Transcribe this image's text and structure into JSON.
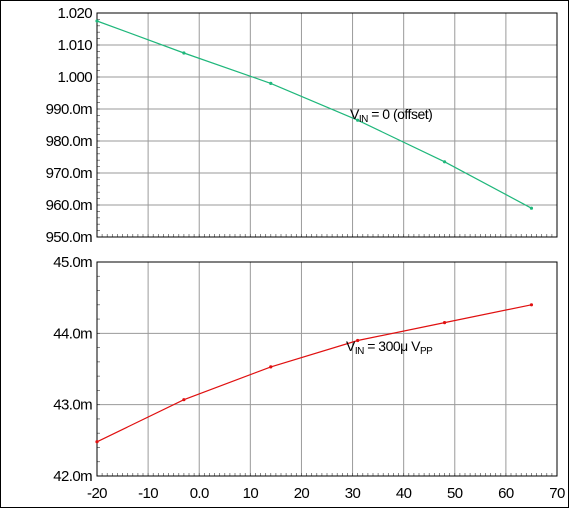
{
  "chart_data": [
    {
      "type": "line",
      "x": [
        -20,
        -3,
        14,
        31,
        48,
        65
      ],
      "xlim": [
        -20,
        70
      ],
      "xticks": [
        -20,
        -10,
        0,
        10,
        20,
        30,
        40,
        50,
        60,
        70
      ],
      "ylim": [
        0.95,
        1.02
      ],
      "yticks": [
        0.95,
        0.96,
        0.97,
        0.98,
        0.99,
        1.0,
        1.01,
        1.02
      ],
      "ytick_labels": [
        "950.0m",
        "960.0m",
        "970.0m",
        "980.0m",
        "990.0m",
        "1.000",
        "1.010",
        "1.020"
      ],
      "grid": true,
      "series": [
        {
          "values": [
            1.0175,
            1.0075,
            0.998,
            0.9865,
            0.9735,
            0.959
          ],
          "color": "#1fb77b"
        }
      ],
      "annotation": {
        "main": "V",
        "sub": "IN",
        "rest": " = 0 (offset)"
      }
    },
    {
      "type": "line",
      "x": [
        -20,
        -3,
        14,
        31,
        48,
        65
      ],
      "xlim": [
        -20,
        70
      ],
      "xticks": [
        -20,
        -10,
        0,
        10,
        20,
        30,
        40,
        50,
        60,
        70
      ],
      "xtick_labels": [
        "-20",
        "-10",
        "0.0",
        "10",
        "20",
        "30",
        "40",
        "50",
        "60",
        "70"
      ],
      "ylim": [
        0.042,
        0.045
      ],
      "yticks": [
        0.042,
        0.043,
        0.044,
        0.045
      ],
      "ytick_labels": [
        "42.0m",
        "43.0m",
        "44.0m",
        "45.0m"
      ],
      "grid": true,
      "series": [
        {
          "values": [
            0.04248,
            0.04307,
            0.04353,
            0.0439,
            0.04415,
            0.0444
          ],
          "color": "#e01010"
        }
      ],
      "annotation": {
        "main": "V",
        "sub": "IN",
        "rest": " = 300μ V",
        "sub2": "PP"
      }
    }
  ]
}
